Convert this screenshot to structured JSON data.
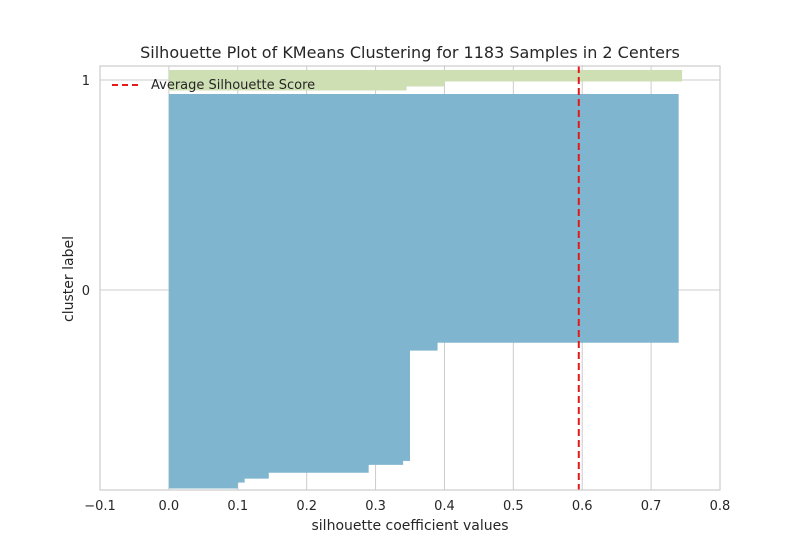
{
  "chart_data": {
    "type": "silhouette",
    "title": "Silhouette Plot of KMeans Clustering for 1183 Samples in 2 Centers",
    "xlabel": "silhouette coefficient values",
    "ylabel": "cluster label",
    "xlim": [
      -0.1,
      0.8
    ],
    "x_ticks": [
      -0.1,
      0.0,
      0.1,
      0.2,
      0.3,
      0.4,
      0.5,
      0.6,
      0.7,
      0.8
    ],
    "x_tick_labels": [
      "−0.1",
      "0.0",
      "0.1",
      "0.2",
      "0.3",
      "0.4",
      "0.5",
      "0.6",
      "0.7",
      "0.8"
    ],
    "y_ticks": [
      {
        "label": "0",
        "position": 0
      },
      {
        "label": "1",
        "position": 1
      }
    ],
    "grid": true,
    "legend": {
      "placement": "top-left",
      "entries": [
        "Average Silhouette Score"
      ]
    },
    "average_silhouette_score": 0.595,
    "series": [
      {
        "cluster": "0",
        "color": "#7fb5cf",
        "steps": [
          {
            "value": 0.74,
            "fraction": 0.63
          },
          {
            "value": 0.39,
            "fraction": 0.02
          },
          {
            "value": 0.35,
            "fraction": 0.28
          },
          {
            "value": 0.34,
            "fraction": 0.01
          },
          {
            "value": 0.29,
            "fraction": 0.02
          },
          {
            "value": 0.145,
            "fraction": 0.015
          },
          {
            "value": 0.11,
            "fraction": 0.01
          },
          {
            "value": 0.1,
            "fraction": 0.015
          }
        ]
      },
      {
        "cluster": "1",
        "color": "#cfdfb4",
        "steps": [
          {
            "value": 0.745,
            "fraction": 0.55
          },
          {
            "value": 0.4,
            "fraction": 0.25
          },
          {
            "value": 0.345,
            "fraction": 0.2
          }
        ]
      }
    ],
    "average_line_color": "#e31a1c",
    "grid_color": "#cccccc",
    "axes_edge_color": "#cccccc"
  }
}
